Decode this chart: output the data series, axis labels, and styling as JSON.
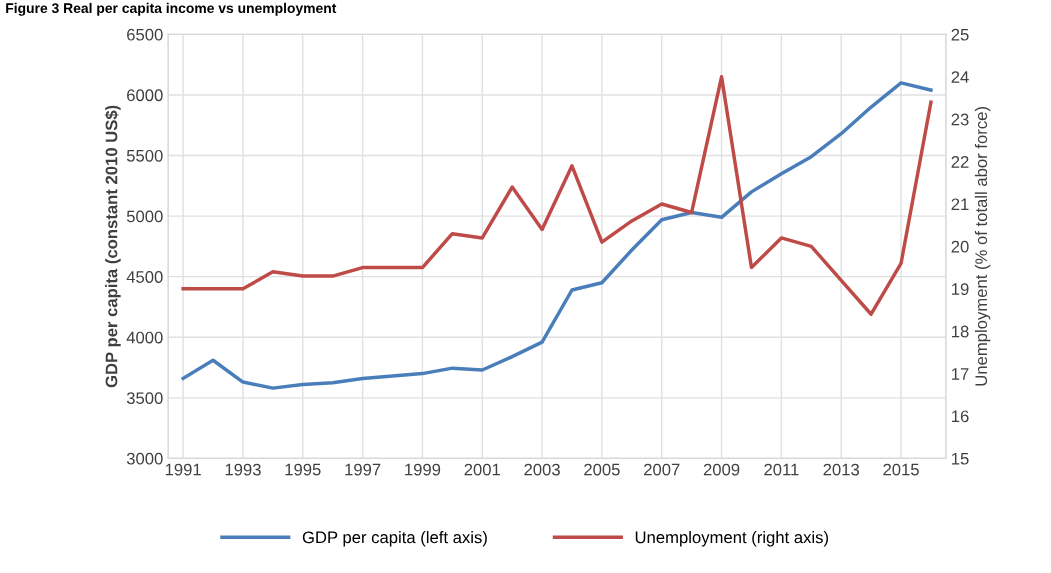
{
  "chart_data": {
    "type": "line",
    "title": "Figure 3 Real per capita income vs unemployment",
    "ylabel": "GDP per capita (constant 2010 US$)",
    "y2label": "Unemployment (% of totall abor force)",
    "categories": [
      "1991",
      null,
      "1993",
      null,
      "1995",
      null,
      "1997",
      null,
      "1999",
      null,
      "2001",
      null,
      "2003",
      null,
      "2005",
      null,
      "2007",
      null,
      "2009",
      null,
      "2011",
      null,
      "2013",
      null,
      "2015",
      null
    ],
    "series": [
      {
        "name": "GDP per capita (left axis)",
        "color": "#4a7ebb",
        "values": [
          3660,
          3810,
          3630,
          3580,
          3610,
          3625,
          3660,
          3680,
          3700,
          3745,
          3730,
          3840,
          3960,
          4390,
          4450,
          4720,
          4970,
          5030,
          4990,
          5200,
          5350,
          5490,
          5680,
          5900,
          6100,
          6040
        ]
      },
      {
        "name": "Unemployment (right axis)",
        "color": "#be4b48",
        "axis": "y2",
        "values": [
          19,
          19,
          19,
          19.4,
          19.3,
          19.3,
          19.5,
          19.5,
          19.5,
          20.3,
          20.2,
          21.4,
          20.4,
          21.9,
          20.1,
          20.6,
          21.0,
          20.8,
          24.0,
          19.5,
          20.2,
          20.0,
          19.2,
          18.4,
          19.6,
          23.4
        ]
      }
    ],
    "ylim": [
      3000,
      6500
    ],
    "yticks": [
      3000,
      3500,
      4000,
      4500,
      5000,
      5500,
      6000,
      6500
    ],
    "y2lim": [
      15,
      25
    ],
    "y2ticks": [
      15,
      16,
      17,
      18,
      19,
      20,
      21,
      22,
      23,
      24,
      25
    ],
    "grid": true,
    "legend": "bottom",
    "marker": "none",
    "line_style": "solid"
  }
}
